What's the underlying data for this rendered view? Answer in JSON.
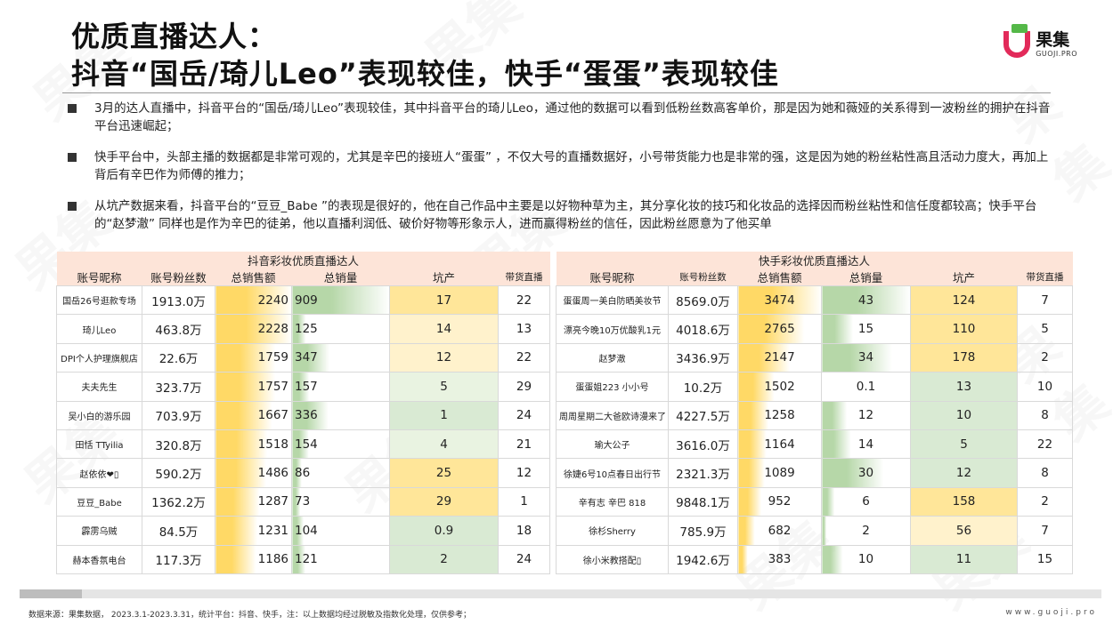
{
  "title": {
    "line1": "优质直播达人：",
    "line2": "抖音“国岳/琦儿Leo”表现较佳，快手“蛋蛋”表现较佳"
  },
  "logo": {
    "cn": "果集",
    "en": "GUOJI.PRO"
  },
  "bullets": [
    "3月的达人直播中，抖音平台的“国岳/琦儿Leo”表现较佳，其中抖音平台的琦儿Leo，通过他的数据可以看到低粉丝数高客单价，那是因为她和薇娅的关系得到一波粉丝的拥护在抖音平台迅速崛起；",
    "快手平台中，头部主播的数据都是非常可观的，尤其是辛巴的接班人“蛋蛋” ，不仅大号的直播数据好，小号带货能力也是非常的强，这是因为她的粉丝粘性高且活动力度大，再加上背后有辛巴作为师傅的推力；",
    "从坑产数据来看，抖音平台的“豆豆_Babe ”的表现是很好的，他在自己作品中主要是以好物种草为主，其分享化妆的技巧和化妆品的选择因而粉丝粘性和信任度都较高；快手平台的“赵梦澈” 同样也是作为辛巴的徒弟，他以直播利润低、破价好物等形象示人，进而赢得粉丝的信任，因此粉丝愿意为了他买单"
  ],
  "douyin": {
    "caption": "抖音彩妆优质直播达人",
    "headers": [
      "账号昵称",
      "账号粉丝数",
      "总销售额",
      "总销量",
      "坑产",
      "带货直播"
    ],
    "rows": [
      {
        "name": "国岳26号逛款专场",
        "fans": "1913.0万",
        "sales": 2240,
        "qty": 909,
        "kc": "17",
        "live": "22"
      },
      {
        "name": "琦儿Leo",
        "fans": "463.8万",
        "sales": 2228,
        "qty": 125,
        "kc": "14",
        "live": "13"
      },
      {
        "name": "DPI个人护理旗舰店",
        "fans": "22.6万",
        "sales": 1759,
        "qty": 347,
        "kc": "12",
        "live": "22"
      },
      {
        "name": "夫夫先生",
        "fans": "323.7万",
        "sales": 1757,
        "qty": 157,
        "kc": "5",
        "live": "29"
      },
      {
        "name": "吴小白的游乐园",
        "fans": "703.9万",
        "sales": 1667,
        "qty": 336,
        "kc": "1",
        "live": "24"
      },
      {
        "name": "田恬 TTyilia",
        "fans": "320.8万",
        "sales": 1518,
        "qty": 154,
        "kc": "4",
        "live": "21"
      },
      {
        "name": "赵依依❤▯",
        "fans": "590.2万",
        "sales": 1486,
        "qty": 86,
        "kc": "25",
        "live": "12"
      },
      {
        "name": "豆豆_Babe",
        "fans": "1362.2万",
        "sales": 1287,
        "qty": 73,
        "kc": "29",
        "live": "1"
      },
      {
        "name": "霹雳乌贼",
        "fans": "84.5万",
        "sales": 1231,
        "qty": 104,
        "kc": "0.9",
        "live": "18"
      },
      {
        "name": "赫本香氛电台",
        "fans": "117.3万",
        "sales": 1186,
        "qty": 121,
        "kc": "2",
        "live": "24"
      }
    ]
  },
  "kuaishou": {
    "caption": "快手彩妆优质直播达人",
    "headers": [
      "账号昵称",
      "账号粉丝数",
      "总销售额",
      "总销量",
      "坑产",
      "带货直播"
    ],
    "rows": [
      {
        "name": "蛋蛋周一美白防晒美妆节",
        "fans": "8569.0万",
        "sales": 3474,
        "qty": "43",
        "kc": "124",
        "live": "7"
      },
      {
        "name": "漂亮今晚10万优酸乳1元",
        "fans": "4018.6万",
        "sales": 2765,
        "qty": "15",
        "kc": "110",
        "live": "5"
      },
      {
        "name": "赵梦澈",
        "fans": "3436.9万",
        "sales": 2147,
        "qty": "34",
        "kc": "178",
        "live": "2"
      },
      {
        "name": "蛋蛋姐223 小小号",
        "fans": "10.2万",
        "sales": 1502,
        "qty": "0.1",
        "kc": "13",
        "live": "10"
      },
      {
        "name": "周周星期二大爸欧诗漫来了",
        "fans": "4227.5万",
        "sales": 1258,
        "qty": "12",
        "kc": "10",
        "live": "8"
      },
      {
        "name": "瑜大公子",
        "fans": "3616.0万",
        "sales": 1164,
        "qty": "14",
        "kc": "5",
        "live": "22"
      },
      {
        "name": "徐婕6号10点春日出行节",
        "fans": "2321.3万",
        "sales": 1089,
        "qty": "30",
        "kc": "12",
        "live": "8"
      },
      {
        "name": "辛有志 辛巴 818",
        "fans": "9848.1万",
        "sales": 952,
        "qty": "6",
        "kc": "158",
        "live": "2"
      },
      {
        "name": "徐杉Sherry",
        "fans": "785.9万",
        "sales": 682,
        "qty": "2",
        "kc": "56",
        "live": "7"
      },
      {
        "name": "徐小米教搭配▯",
        "fans": "1942.6万",
        "sales": 383,
        "qty": "10",
        "kc": "11",
        "live": "15"
      }
    ]
  },
  "colors": {
    "header_bg": "#fde4d8",
    "bar_yellow": "#ffd966",
    "bar_green": "#b6d7a8",
    "cell_yellow": "#fff2cc",
    "cell_green": "#d9ead3"
  },
  "footer": {
    "source": "数据来源：果集数据， 2023.3.1-2023.3.31，统计平台：抖音、快手，注：以上数据均经过脱敏及指数化处理，仅供参考；",
    "url": "www.guoji.pro"
  }
}
